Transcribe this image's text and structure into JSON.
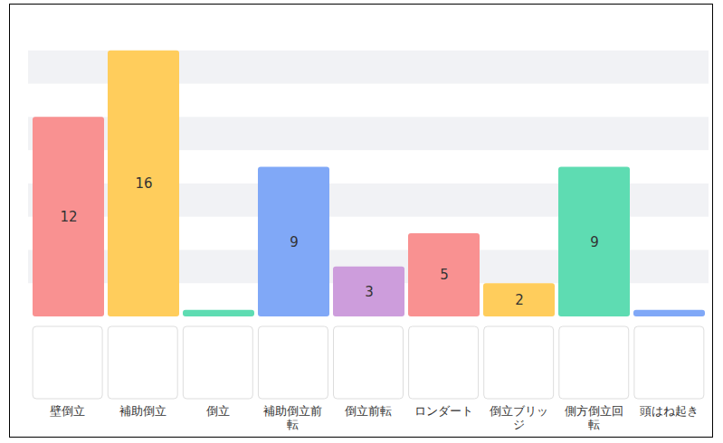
{
  "chart_data": {
    "type": "bar",
    "categories": [
      "壁倒立",
      "補助倒立",
      "倒立",
      "補助倒立前転",
      "倒立前転",
      "ロンダート",
      "倒立ブリッジ",
      "側方倒立回転",
      "頭はね起き"
    ],
    "values": [
      12,
      16,
      0.4,
      9,
      3,
      5,
      2,
      9,
      0.4
    ],
    "value_labels": [
      "12",
      "16",
      null,
      "9",
      "3",
      "5",
      "2",
      "9",
      null
    ],
    "colors": [
      "#f99191",
      "#ffcd5c",
      "#5edcb2",
      "#80a8f7",
      "#cd9ddc",
      "#f99191",
      "#ffcd5c",
      "#5edcb2",
      "#80a8f7"
    ],
    "ylim": [
      0,
      18
    ],
    "yticks": [
      0,
      2,
      4,
      6,
      8,
      10,
      12,
      14,
      16,
      18
    ],
    "grid": true,
    "data_labels": true,
    "tick_labels": "x"
  }
}
